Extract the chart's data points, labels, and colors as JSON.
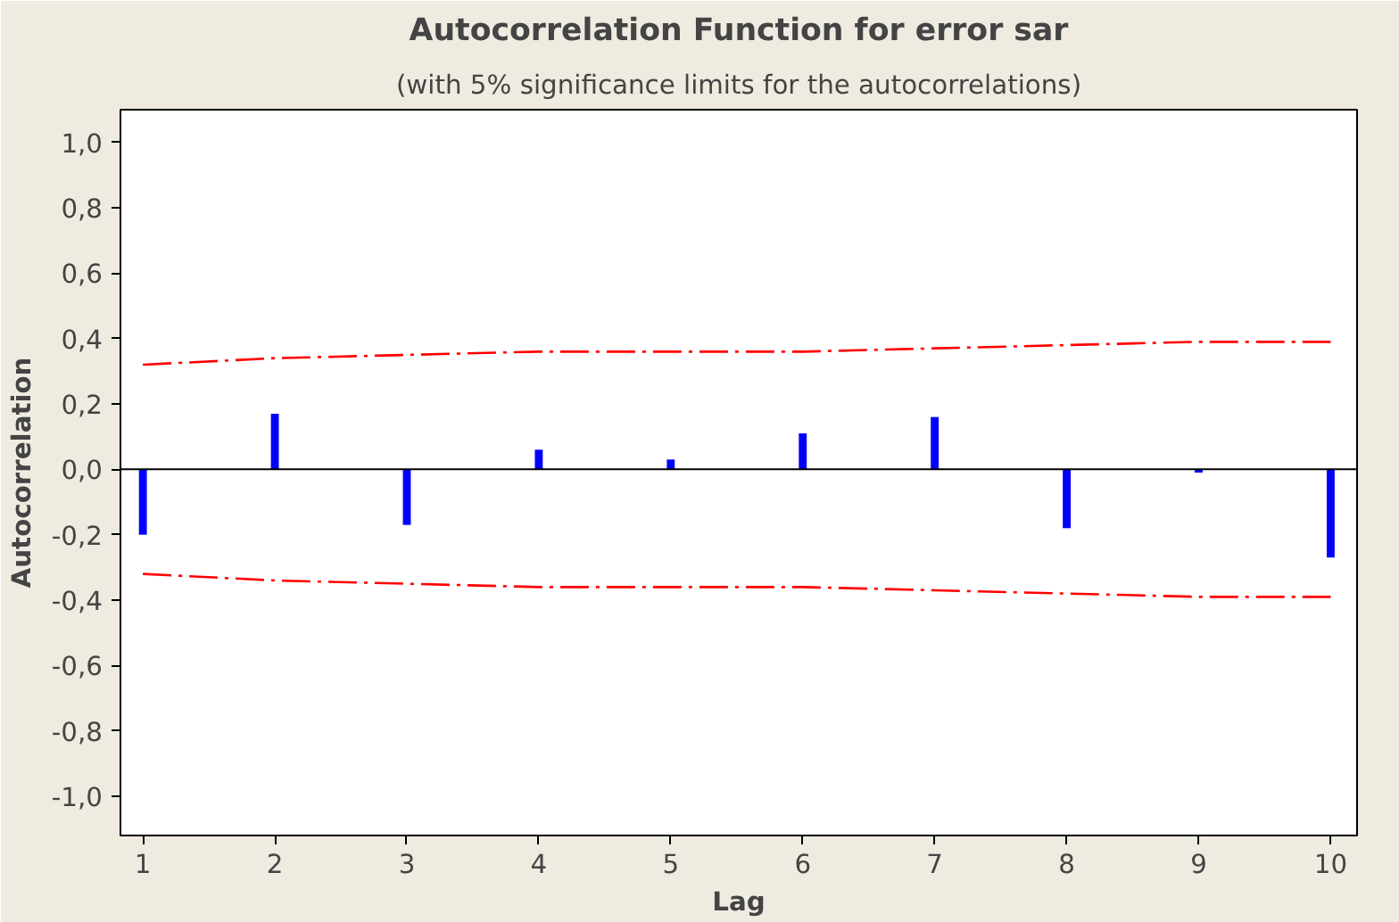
{
  "chart_data": {
    "type": "bar",
    "title": "Autocorrelation Function for error sar",
    "subtitle": "(with 5% significance limits for the autocorrelations)",
    "xlabel": "Lag",
    "ylabel": "Autocorrelation",
    "x": [
      1,
      2,
      3,
      4,
      5,
      6,
      7,
      8,
      9,
      10
    ],
    "series": [
      {
        "color": "#0000ff",
        "values": [
          -0.2,
          0.17,
          -0.17,
          0.06,
          0.03,
          0.11,
          0.16,
          -0.18,
          -0.01,
          -0.27
        ]
      },
      {
        "type": "line",
        "color": "#ff0000",
        "line_style": "dashdot",
        "values": [
          0.32,
          0.34,
          0.35,
          0.36,
          0.36,
          0.36,
          0.37,
          0.38,
          0.39,
          0.39
        ]
      },
      {
        "type": "line",
        "color": "#ff0000",
        "line_style": "dashdot",
        "values": [
          -0.32,
          -0.34,
          -0.35,
          -0.36,
          -0.36,
          -0.36,
          -0.37,
          -0.38,
          -0.39,
          -0.39
        ]
      }
    ],
    "xlim": [
      0.83,
      10.2
    ],
    "xticks": [
      1,
      2,
      3,
      4,
      5,
      6,
      7,
      8,
      9,
      10
    ],
    "ylim": [
      -1.12,
      1.1
    ],
    "yticks": [
      {
        "value": -1.0,
        "label": "-1,0"
      },
      {
        "value": -0.8,
        "label": "-0,8"
      },
      {
        "value": -0.6,
        "label": "-0,6"
      },
      {
        "value": -0.4,
        "label": "-0,4"
      },
      {
        "value": -0.2,
        "label": "-0,2"
      },
      {
        "value": 0.0,
        "label": "0,0"
      },
      {
        "value": 0.2,
        "label": "0,2"
      },
      {
        "value": 0.4,
        "label": "0,4"
      },
      {
        "value": 0.6,
        "label": "0,6"
      },
      {
        "value": 0.8,
        "label": "0,8"
      },
      {
        "value": 1.0,
        "label": "1,0"
      }
    ],
    "ref_lines": [
      {
        "axis": "y",
        "value": 0,
        "color": "#000000"
      }
    ],
    "grid": false
  }
}
